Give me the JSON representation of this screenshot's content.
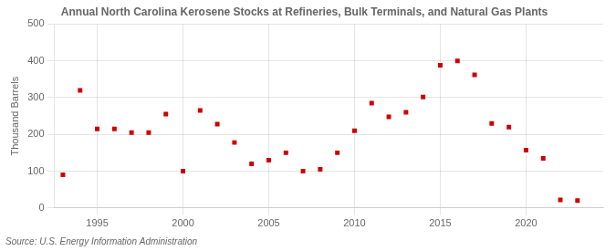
{
  "chart_data": {
    "type": "scatter",
    "title": "Annual North Carolina Kerosene Stocks at Refineries, Bulk Terminals, and Natural Gas Plants",
    "y_label": "Thousand Barrels",
    "annotations": [
      "Source: U.S. Energy Information Administration"
    ],
    "x": [
      1993,
      1994,
      1995,
      1996,
      1997,
      1998,
      1999,
      2000,
      2001,
      2002,
      2003,
      2004,
      2005,
      2006,
      2007,
      2008,
      2009,
      2010,
      2011,
      2012,
      2013,
      2014,
      2015,
      2016,
      2017,
      2018,
      2019,
      2020,
      2021,
      2022,
      2023
    ],
    "values": [
      90,
      320,
      215,
      215,
      205,
      205,
      255,
      100,
      265,
      228,
      178,
      120,
      130,
      150,
      100,
      105,
      150,
      210,
      285,
      248,
      260,
      302,
      388,
      400,
      362,
      230,
      220,
      157,
      135,
      22,
      20
    ],
    "color": "#cc0000",
    "marker": "square",
    "xlim": [
      1992.5,
      2024.5
    ],
    "xticks": [
      1995,
      2000,
      2005,
      2010,
      2015,
      2020
    ],
    "ylim": [
      0,
      500
    ],
    "yticks": [
      0,
      100,
      200,
      300,
      400,
      500
    ],
    "grid": true
  }
}
